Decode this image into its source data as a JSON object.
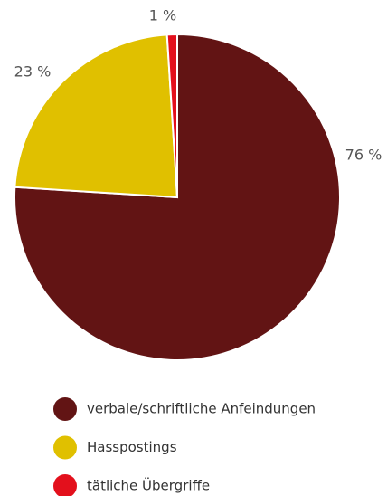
{
  "chart_data": {
    "type": "pie",
    "categories": [
      "verbale/schriftliche Anfeindungen",
      "Hasspostings",
      "tätliche Übergriffe"
    ],
    "values": [
      76,
      23,
      1
    ],
    "value_labels": [
      "76 %",
      "23 %",
      "1 %"
    ],
    "colors": [
      "#621414",
      "#e0c000",
      "#e3101c"
    ]
  }
}
